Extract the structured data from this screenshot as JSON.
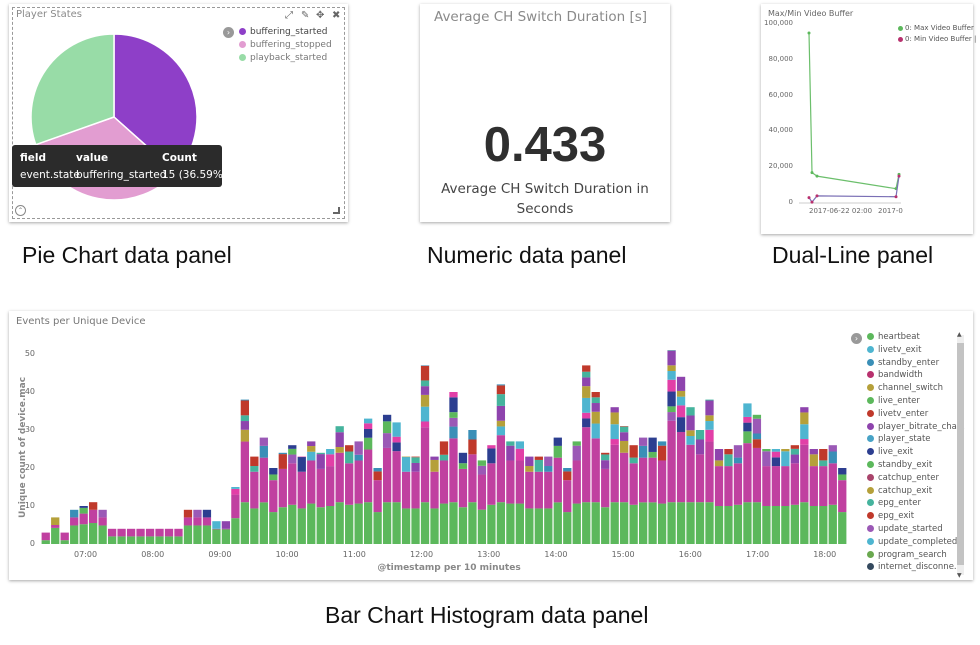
{
  "captions": {
    "pie": "Pie Chart data panel",
    "numeric": "Numeric data panel",
    "dual": "Dual-Line panel",
    "bar": "Bar Chart Histogram data panel"
  },
  "pie_panel": {
    "title": "Player States",
    "legend": [
      {
        "label": "buffering_started",
        "color": "#8e3fc8"
      },
      {
        "label": "buffering_stopped",
        "color": "#e29dd1"
      },
      {
        "label": "playback_started",
        "color": "#98dca7"
      }
    ],
    "tooltip": {
      "headers": [
        "field",
        "value",
        "Count"
      ],
      "row": [
        "event.state",
        "buffering_started",
        "15 (36.59%)"
      ]
    },
    "toolbar_icons": [
      "expand-icon",
      "edit-icon",
      "move-icon",
      "close-icon"
    ]
  },
  "metric_panel": {
    "title": "Average CH Switch Duration [s]",
    "value": "0.433",
    "label": "Average CH Switch Duration in Seconds"
  },
  "dual_panel": {
    "title": "Max/Min Video Buffer",
    "legend": [
      {
        "label": "0: Max Video Buffer",
        "color": "#5cb85c"
      },
      {
        "label": "0: Min Video Buffer |",
        "color": "#b8316e"
      }
    ],
    "y_ticks": [
      "100,000",
      "80,000",
      "60,000",
      "40,000",
      "20,000",
      "0"
    ],
    "x_ticks": [
      "2017-06-22 02:00",
      "2017-0"
    ]
  },
  "bar_panel": {
    "title": "Events per Unique Device",
    "ylabel": "Unique count of device.mac",
    "xlabel": "@timestamp per 10 minutes",
    "y_ticks": [
      "50",
      "40",
      "30",
      "20",
      "10",
      "0"
    ],
    "x_ticks": [
      "07:00",
      "08:00",
      "09:00",
      "10:00",
      "11:00",
      "12:00",
      "13:00",
      "14:00",
      "15:00",
      "16:00",
      "17:00",
      "18:00"
    ],
    "legend": [
      {
        "label": "heartbeat",
        "color": "#5cb85c"
      },
      {
        "label": "livetv_exit",
        "color": "#4eb5d0"
      },
      {
        "label": "standby_enter",
        "color": "#3a8fb7"
      },
      {
        "label": "bandwidth",
        "color": "#b8316e"
      },
      {
        "label": "channel_switch",
        "color": "#b5a03a"
      },
      {
        "label": "live_enter",
        "color": "#5cb85c"
      },
      {
        "label": "livetv_enter",
        "color": "#c0392b"
      },
      {
        "label": "player_bitrate_cha...",
        "color": "#8e44ad"
      },
      {
        "label": "player_state",
        "color": "#48a3c6"
      },
      {
        "label": "live_exit",
        "color": "#2c3e90"
      },
      {
        "label": "standby_exit",
        "color": "#5cb85c"
      },
      {
        "label": "catchup_enter",
        "color": "#a9446b"
      },
      {
        "label": "catchup_exit",
        "color": "#b5a03a"
      },
      {
        "label": "epg_enter",
        "color": "#45b39d"
      },
      {
        "label": "epg_exit",
        "color": "#c0392b"
      },
      {
        "label": "update_started",
        "color": "#9b59b6"
      },
      {
        "label": "update_completed",
        "color": "#4eb5d0"
      },
      {
        "label": "program_search",
        "color": "#6aa84f"
      },
      {
        "label": "internet_disconne...",
        "color": "#34495e"
      }
    ]
  },
  "chart_data": [
    {
      "type": "pie",
      "title": "Player States",
      "categories": [
        "buffering_started",
        "buffering_stopped",
        "playback_started"
      ],
      "values": [
        36.59,
        33.0,
        30.41
      ]
    },
    {
      "type": "line",
      "title": "Max/Min Video Buffer",
      "ylim": [
        0,
        100000
      ],
      "series": [
        {
          "name": "0: Max Video Buffer",
          "values": [
            95000,
            17000,
            15000,
            8000,
            16000
          ]
        },
        {
          "name": "0: Min Video Buffer |",
          "values": [
            3000,
            500,
            4000,
            3500,
            15000
          ]
        }
      ]
    },
    {
      "type": "bar",
      "title": "Events per Unique Device",
      "xlabel": "@timestamp per 10 minutes",
      "ylabel": "Unique count of device.mac",
      "ylim": [
        0,
        50
      ],
      "stacked": true,
      "totals": [
        3,
        7,
        3,
        9,
        10,
        11,
        9,
        4,
        4,
        4,
        4,
        4,
        4,
        4,
        4,
        9,
        9,
        9,
        6,
        6,
        15,
        38,
        23,
        28,
        20,
        24,
        26,
        23,
        27,
        24,
        25,
        31,
        26,
        27,
        33,
        20,
        34,
        32,
        23,
        23,
        47,
        23,
        27,
        40,
        24,
        30,
        22,
        26,
        42,
        27,
        27,
        23,
        23,
        23,
        28,
        20,
        27,
        47,
        40,
        24,
        36,
        31,
        26,
        28,
        28,
        27,
        51,
        44,
        36,
        30,
        38,
        25,
        25,
        26,
        37,
        34,
        25,
        25,
        25,
        26,
        36,
        25,
        25,
        26,
        20
      ]
    }
  ]
}
